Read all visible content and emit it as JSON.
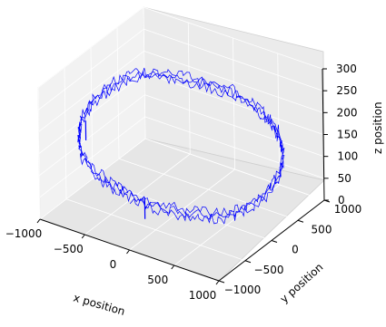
{
  "chart_data": {
    "type": "line",
    "projection": "3d",
    "grid": true,
    "legend": "none",
    "xlabel": "x position",
    "ylabel": "y position",
    "zlabel": "z position",
    "xlim": [
      -1000,
      1000
    ],
    "ylim": [
      -1000,
      1000
    ],
    "zlim": [
      0,
      300
    ],
    "x_ticks": [
      "−1000",
      "−500",
      "0",
      "500",
      "1000"
    ],
    "y_ticks": [
      "−1000",
      "−500",
      "0",
      "500",
      "1000"
    ],
    "z_ticks": [
      "0",
      "50",
      "100",
      "150",
      "200",
      "250",
      "300"
    ],
    "series": [
      {
        "color": "#0000ff",
        "description_points": "circular helical trajectory with random walk noise",
        "x": [
          0,
          250,
          500,
          700,
          850,
          950,
          980,
          940,
          840,
          680,
          480,
          250,
          0,
          -250,
          -480,
          -680,
          -840,
          -940,
          -980,
          -950,
          -850,
          -700,
          -500,
          -250,
          0
        ],
        "y": [
          -960,
          -920,
          -830,
          -700,
          -510,
          -280,
          0,
          280,
          510,
          700,
          830,
          920,
          960,
          920,
          830,
          700,
          510,
          280,
          0,
          -280,
          -510,
          -700,
          -830,
          -920,
          -960
        ],
        "z": [
          120,
          110,
          105,
          100,
          95,
          100,
          110,
          125,
          140,
          155,
          165,
          175,
          180,
          185,
          190,
          195,
          200,
          190,
          180,
          165,
          150,
          140,
          130,
          125,
          120
        ]
      }
    ]
  }
}
